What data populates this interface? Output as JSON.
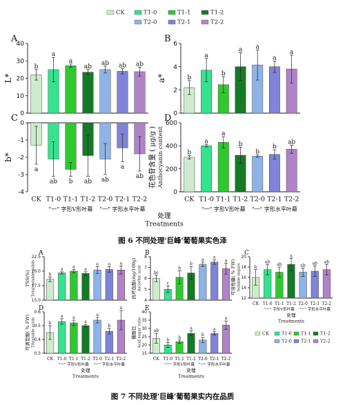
{
  "top_strip_text": "",
  "colors": {
    "CK": "#cdeccd",
    "T1-0": "#35e38e",
    "T1-1": "#2fc92f",
    "T1-2": "#157a26",
    "T2-0": "#8fb3e8",
    "T2-1": "#7f84d8",
    "T2-2": "#b083c9"
  },
  "groups": [
    "CK",
    "T1-0",
    "T1-1",
    "T1-2",
    "T2-0",
    "T2-1",
    "T2-2"
  ],
  "fig6": {
    "caption": "图 6  不同处理'巨峰'葡萄果实色泽",
    "xgroup1": "\"一\" 字形V形叶幕",
    "xgroup2": "\"一\" 字形水平叶幕",
    "xtitle_cn": "处理",
    "xtitle_en": "Treatments"
  },
  "fig7": {
    "caption": "图 7  不同处理'巨峰'葡萄果实内在品质",
    "xgroup1": "\"一\" 字形V形叶幕",
    "xgroup2": "\"一\" 字形水平叶幕",
    "xtitle_cn": "处理",
    "xtitle_en": "Treatments"
  },
  "chart_data": [
    {
      "panel": "A",
      "fig": "6",
      "type": "bar",
      "categories": [
        "CK",
        "T1-0",
        "T1-1",
        "T1-2",
        "T2-0",
        "T2-1",
        "T2-2"
      ],
      "values": [
        22,
        25,
        27.2,
        23.5,
        25,
        24,
        23.8
      ],
      "errors": [
        3,
        7,
        1,
        1.5,
        2,
        1.5,
        2.5
      ],
      "letters": [
        "b",
        "a",
        "a",
        "ab",
        "ab",
        "ab",
        "ab"
      ],
      "ylabel": "L*",
      "ylim": [
        0,
        40
      ],
      "yticks": [
        0,
        10,
        20,
        30,
        40
      ]
    },
    {
      "panel": "B",
      "fig": "6",
      "type": "bar",
      "categories": [
        "CK",
        "T1-0",
        "T1-1",
        "T1-2",
        "T2-0",
        "T2-1",
        "T2-2"
      ],
      "values": [
        2.2,
        3.7,
        2.45,
        4.0,
        4.15,
        4.0,
        3.8
      ],
      "errors": [
        0.6,
        1.0,
        0.7,
        1.2,
        1.3,
        0.5,
        1.2
      ],
      "letters": [
        "b",
        "a",
        "b",
        "a",
        "a",
        "a",
        "a"
      ],
      "ylabel": "a*",
      "ylim": [
        0,
        6
      ],
      "yticks": [
        0,
        2,
        4,
        6
      ]
    },
    {
      "panel": "C",
      "fig": "6",
      "type": "bar",
      "categories": [
        "CK",
        "T1-0",
        "T1-1",
        "T1-2",
        "T2-0",
        "T2-1",
        "T2-2"
      ],
      "values": [
        -1.3,
        -2.1,
        -2.7,
        -1.9,
        -2.1,
        -1.45,
        -1.8
      ],
      "errors": [
        1.1,
        1.0,
        0.4,
        1.2,
        0.9,
        0.8,
        1.0
      ],
      "letters": [
        "a",
        "ab",
        "b",
        "ab",
        "ab",
        "a",
        "ab"
      ],
      "ylabel": "b*",
      "ylim": [
        -4,
        0
      ],
      "yticks": [
        0,
        -1,
        -2,
        -3,
        -4
      ]
    },
    {
      "panel": "D",
      "fig": "6",
      "type": "bar",
      "categories": [
        "CK",
        "T1-0",
        "T1-1",
        "T1-2",
        "T2-0",
        "T2-1",
        "T2-2"
      ],
      "values": [
        300,
        400,
        430,
        318,
        310,
        325,
        370
      ],
      "errors": [
        15,
        10,
        50,
        70,
        10,
        40,
        35
      ],
      "letters": [
        "b",
        "a",
        "a",
        "b",
        "b",
        "b",
        "ab"
      ],
      "ylabel": "花色苷含量 ( μg/g )",
      "ylabel2": "Anthocyanin content",
      "ylim": [
        0,
        600
      ],
      "yticks": [
        0,
        200,
        400,
        600
      ]
    },
    {
      "panel": "A",
      "fig": "7",
      "type": "bar",
      "categories": [
        "CK",
        "T1-0",
        "T1-1",
        "T1-2",
        "T2-0",
        "T2-1",
        "T2-2"
      ],
      "values": [
        18.6,
        19.7,
        20.0,
        19.6,
        20.2,
        20.3,
        20.2
      ],
      "errors": [
        0.4,
        0.2,
        0.3,
        0.3,
        0.6,
        0.5,
        0.7
      ],
      "letters": [
        "b",
        "a",
        "a",
        "a",
        "a",
        "a",
        "a"
      ],
      "ylabel": "TSS(%)",
      "ylabel2": "Total soluble solids",
      "ylim": [
        15,
        22.5
      ],
      "yticks": [
        15.0,
        17.5,
        20.0,
        22.5
      ],
      "tickdec": 1
    },
    {
      "panel": "B",
      "fig": "7",
      "type": "bar",
      "categories": [
        "CK",
        "T1-0",
        "T1-1",
        "T1-2",
        "T2-0",
        "T2-1",
        "T2-2"
      ],
      "values": [
        6.0,
        5.0,
        6.1,
        6.5,
        7.3,
        7.5,
        6.9
      ],
      "errors": [
        0.3,
        0.3,
        0.6,
        0.6,
        0.2,
        0.2,
        0.5
      ],
      "letters": [
        "bc",
        "c",
        "b",
        "b",
        "a",
        "a",
        "a"
      ],
      "ylabel": "抗坏血酸(mg/100g)",
      "ylabel2": "Ascorbic acid",
      "ylim": [
        4,
        8
      ],
      "yticks": [
        4,
        5,
        6,
        7,
        8
      ]
    },
    {
      "panel": "C",
      "fig": "7",
      "type": "bar",
      "categories": [
        "CK",
        "T1-0",
        "T1-1",
        "T1-2",
        "T2-0",
        "T2-1",
        "T2-2"
      ],
      "values": [
        16,
        17.5,
        17,
        18.5,
        17,
        17.2,
        17.5
      ],
      "errors": [
        1.5,
        1,
        1,
        1.2,
        0.8,
        1,
        1
      ],
      "letters": [
        "b",
        "ab",
        "ab",
        "a",
        "ab",
        "ab",
        "ab"
      ],
      "ylabel": "可溶性糖( % FW)",
      "ylabel2": "Soluble sugars",
      "ylim": [
        12,
        20
      ],
      "yticks": [
        12,
        14,
        16,
        18,
        20
      ]
    },
    {
      "panel": "D",
      "fig": "7",
      "type": "bar",
      "categories": [
        "CK",
        "T1-0",
        "T1-1",
        "T1-2",
        "T2-0",
        "T2-1",
        "T2-2"
      ],
      "values": [
        0.45,
        0.53,
        0.52,
        0.5,
        0.54,
        0.46,
        0.54
      ],
      "errors": [
        0.05,
        0.02,
        0.02,
        0.01,
        0.02,
        0.02,
        0.07
      ],
      "letters": [
        "b",
        "a",
        "a",
        "a",
        "a",
        "b",
        "a"
      ],
      "ylabel": "可滴定酸( % FW)",
      "ylabel2": "Titratable acids",
      "ylim": [
        0.3,
        0.6
      ],
      "yticks": [
        0.3,
        0.4,
        0.5,
        0.6
      ],
      "tickdec": 1
    },
    {
      "panel": "E",
      "fig": "7",
      "type": "bar",
      "categories": [
        "CK",
        "T1-0",
        "T1-1",
        "T1-2",
        "T2-0",
        "T2-1",
        "T2-2"
      ],
      "values": [
        24,
        20,
        22,
        27,
        23,
        27,
        32
      ],
      "errors": [
        3,
        1.5,
        1,
        1.5,
        1.5,
        1,
        2.5
      ],
      "letters": [
        "ab",
        "b",
        "b",
        "a",
        "b",
        "a",
        "a"
      ],
      "ylabel": "糖酸比",
      "ylabel2": "Acid-sugar ratio",
      "ylim": [
        15,
        40
      ],
      "yticks": [
        15,
        20,
        25,
        30,
        35,
        40
      ]
    }
  ]
}
